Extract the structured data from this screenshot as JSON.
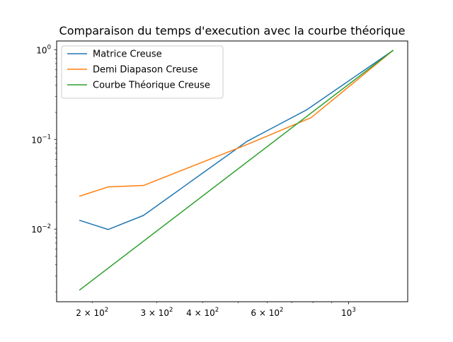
{
  "chart_data": {
    "type": "line",
    "title": "Comparaison du temps d'execution avec la courbe théorique",
    "xlabel": "",
    "ylabel": "",
    "xscale": "log",
    "yscale": "log",
    "xlim": [
      160,
      1450
    ],
    "ylim": [
      0.00155,
      1.25
    ],
    "grid": false,
    "legend_position": "top-left",
    "x_ticks": [
      {
        "value": 200,
        "base": "2 × 10",
        "exp": "2"
      },
      {
        "value": 300,
        "base": "3 × 10",
        "exp": "2"
      },
      {
        "value": 400,
        "base": "4 × 10",
        "exp": "2"
      },
      {
        "value": 600,
        "base": "6 × 10",
        "exp": "2"
      },
      {
        "value": 1000,
        "base": "10",
        "exp": "3"
      }
    ],
    "y_ticks": [
      {
        "value": 0.01,
        "base": "10",
        "exp": "−2"
      },
      {
        "value": 0.1,
        "base": "10",
        "exp": "−1"
      },
      {
        "value": 1,
        "base": "10",
        "exp": "0"
      }
    ],
    "series": [
      {
        "name": "Matrice Creuse",
        "color": "#1f77b4",
        "x": [
          185,
          221,
          276,
          529,
          768,
          1322
        ],
        "y": [
          0.0125,
          0.0099,
          0.0142,
          0.0952,
          0.213,
          0.98
        ]
      },
      {
        "name": "Demi Diapason Creuse",
        "color": "#ff7f0e",
        "x": [
          185,
          221,
          276,
          528,
          791,
          1322
        ],
        "y": [
          0.0233,
          0.0295,
          0.0306,
          0.0873,
          0.175,
          0.98
        ]
      },
      {
        "name": "Courbe Théorique Creuse",
        "color": "#2ca02c",
        "x": [
          185,
          1322
        ],
        "y": [
          0.0021,
          0.98
        ]
      }
    ]
  }
}
